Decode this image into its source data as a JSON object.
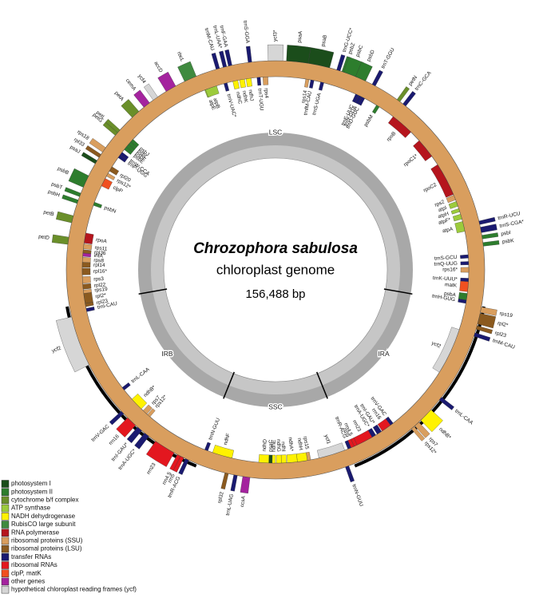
{
  "title": "Chrozophora sabulosa",
  "subtitle": "chloroplast genome",
  "size": "156,488 bp",
  "regions": [
    "LSC",
    "IRB",
    "SSC",
    "IRA"
  ],
  "legend": [
    {
      "label": "photosystem I",
      "color": "#1b4d1b"
    },
    {
      "label": "photosystem II",
      "color": "#2d7d2d"
    },
    {
      "label": "cytochrome b/f complex",
      "color": "#6a8f2a"
    },
    {
      "label": "ATP synthase",
      "color": "#9ccb3c"
    },
    {
      "label": "NADH dehydrogenase",
      "color": "#fff200"
    },
    {
      "label": "RubisCO large subunit",
      "color": "#3f8a3f"
    },
    {
      "label": "RNA polymerase",
      "color": "#b5151d"
    },
    {
      "label": "ribosomal proteins (SSU)",
      "color": "#d99e5e"
    },
    {
      "label": "ribosomal proteins (LSU)",
      "color": "#8b5a1f"
    },
    {
      "label": "transfer RNAs",
      "color": "#1a1a70"
    },
    {
      "label": "ribosomal RNAs",
      "color": "#e3171f"
    },
    {
      "label": "clpP, matK",
      "color": "#f05020"
    },
    {
      "label": "other genes",
      "color": "#a4239e"
    },
    {
      "label": "hypothetical chloroplast reading frames (ycf)",
      "color": "#d6d6d6"
    }
  ],
  "genes": [
    {
      "label": "trnL-UAA*",
      "color": "#1a1a70",
      "strand": "outer"
    },
    {
      "label": "trnF-GAA",
      "color": "#1a1a70",
      "strand": "outer"
    },
    {
      "label": "trnS-GGA",
      "color": "#1a1a70",
      "strand": "outer"
    },
    {
      "label": "ycf3*",
      "color": "#d6d6d6",
      "strand": "outer"
    },
    {
      "label": "psaA",
      "color": "#1b4d1b",
      "strand": "outer"
    },
    {
      "label": "psaB",
      "color": "#1b4d1b",
      "strand": "outer"
    },
    {
      "label": "trnG-UCC*",
      "color": "#1a1a70",
      "strand": "outer"
    },
    {
      "label": "psbZ",
      "color": "#2d7d2d",
      "strand": "outer"
    },
    {
      "label": "psbC",
      "color": "#2d7d2d",
      "strand": "outer"
    },
    {
      "label": "psbD",
      "color": "#2d7d2d",
      "strand": "outer"
    },
    {
      "label": "trnT-GGU",
      "color": "#1a1a70",
      "strand": "outer"
    },
    {
      "label": "petN",
      "color": "#6a8f2a",
      "strand": "outer"
    },
    {
      "label": "trnC-GCA",
      "color": "#1a1a70",
      "strand": "outer"
    },
    {
      "label": "trnR-UCU",
      "color": "#1a1a70",
      "strand": "outer"
    },
    {
      "label": "trnS-CGA*",
      "color": "#1a1a70",
      "strand": "outer"
    },
    {
      "label": "psbI",
      "color": "#2d7d2d",
      "strand": "outer"
    },
    {
      "label": "psbK",
      "color": "#2d7d2d",
      "strand": "outer"
    },
    {
      "label": "rps19",
      "color": "#d99e5e",
      "strand": "outer"
    },
    {
      "label": "rpl2*",
      "color": "#8b5a1f",
      "strand": "outer"
    },
    {
      "label": "rpl23",
      "color": "#8b5a1f",
      "strand": "outer"
    },
    {
      "label": "trnM-CAU",
      "color": "#1a1a70",
      "strand": "outer"
    },
    {
      "label": "trnL-CAA",
      "color": "#1a1a70",
      "strand": "outer"
    },
    {
      "label": "ndhB*",
      "color": "#fff200",
      "strand": "outer"
    },
    {
      "label": "rps7",
      "color": "#d99e5e",
      "strand": "outer"
    },
    {
      "label": "rps12*",
      "color": "#d99e5e",
      "strand": "outer"
    },
    {
      "label": "trnN-GUU",
      "color": "#1a1a70",
      "strand": "outer"
    },
    {
      "label": "ccsA",
      "color": "#a4239e",
      "strand": "outer"
    },
    {
      "label": "trnL-UAG",
      "color": "#1a1a70",
      "strand": "outer"
    },
    {
      "label": "rpl32",
      "color": "#8b5a1f",
      "strand": "outer"
    },
    {
      "label": "trnR-ACG",
      "color": "#1a1a70",
      "strand": "outer"
    },
    {
      "label": "rrn5",
      "color": "#e3171f",
      "strand": "outer"
    },
    {
      "label": "rrn4.5",
      "color": "#e3171f",
      "strand": "outer"
    },
    {
      "label": "rrn23",
      "color": "#e3171f",
      "strand": "outer"
    },
    {
      "label": "trnA-UGC*",
      "color": "#1a1a70",
      "strand": "outer"
    },
    {
      "label": "trnI-GAU*",
      "color": "#1a1a70",
      "strand": "outer"
    },
    {
      "label": "rrn16",
      "color": "#e3171f",
      "strand": "outer"
    },
    {
      "label": "trnV-GAC",
      "color": "#1a1a70",
      "strand": "outer"
    },
    {
      "label": "ycf2",
      "color": "#d6d6d6",
      "strand": "outer"
    },
    {
      "label": "petD",
      "color": "#6a8f2a",
      "strand": "outer"
    },
    {
      "label": "petB",
      "color": "#6a8f2a",
      "strand": "outer"
    },
    {
      "label": "psbH",
      "color": "#2d7d2d",
      "strand": "outer"
    },
    {
      "label": "psbT",
      "color": "#2d7d2d",
      "strand": "outer"
    },
    {
      "label": "psbB",
      "color": "#2d7d2d",
      "strand": "outer"
    },
    {
      "label": "psaJ",
      "color": "#1b4d1b",
      "strand": "outer"
    },
    {
      "label": "rpl33",
      "color": "#8b5a1f",
      "strand": "outer"
    },
    {
      "label": "rps18",
      "color": "#d99e5e",
      "strand": "outer"
    },
    {
      "label": "petG",
      "color": "#6a8f2a",
      "strand": "outer"
    },
    {
      "label": "petL",
      "color": "#6a8f2a",
      "strand": "outer"
    },
    {
      "label": "petA",
      "color": "#6a8f2a",
      "strand": "outer"
    },
    {
      "label": "cemA",
      "color": "#a4239e",
      "strand": "outer"
    },
    {
      "label": "ycf4",
      "color": "#d6d6d6",
      "strand": "outer"
    },
    {
      "label": "accD",
      "color": "#a4239e",
      "strand": "outer"
    },
    {
      "label": "rbcL",
      "color": "#3f8a3f",
      "strand": "outer"
    },
    {
      "label": "trnM-CAU",
      "color": "#1a1a70",
      "strand": "outer"
    },
    {
      "label": "atpE",
      "color": "#9ccb3c",
      "strand": "inner"
    },
    {
      "label": "atpB",
      "color": "#9ccb3c",
      "strand": "inner"
    },
    {
      "label": "trnV-UAC*",
      "color": "#1a1a70",
      "strand": "inner"
    },
    {
      "label": "ndhC",
      "color": "#fff200",
      "strand": "inner"
    },
    {
      "label": "ndhK",
      "color": "#fff200",
      "strand": "inner"
    },
    {
      "label": "ndhJ",
      "color": "#fff200",
      "strand": "inner"
    },
    {
      "label": "trnT-UGU",
      "color": "#1a1a70",
      "strand": "inner"
    },
    {
      "label": "rps4",
      "color": "#d99e5e",
      "strand": "inner"
    },
    {
      "label": "rps14",
      "color": "#d99e5e",
      "strand": "inner"
    },
    {
      "label": "trnfM-CAU",
      "color": "#1a1a70",
      "strand": "inner"
    },
    {
      "label": "trnS-UGA",
      "color": "#1a1a70",
      "strand": "inner"
    },
    {
      "label": "trnE-UUC",
      "color": "#1a1a70",
      "strand": "inner"
    },
    {
      "label": "trnY-GUA",
      "color": "#1a1a70",
      "strand": "inner"
    },
    {
      "label": "trnD-GUC",
      "color": "#1a1a70",
      "strand": "inner"
    },
    {
      "label": "psbM",
      "color": "#2d7d2d",
      "strand": "inner"
    },
    {
      "label": "rpoB",
      "color": "#b5151d",
      "strand": "inner"
    },
    {
      "label": "rpoC1*",
      "color": "#b5151d",
      "strand": "inner"
    },
    {
      "label": "rpoC2",
      "color": "#b5151d",
      "strand": "inner"
    },
    {
      "label": "rps2",
      "color": "#d99e5e",
      "strand": "inner"
    },
    {
      "label": "atpI",
      "color": "#9ccb3c",
      "strand": "inner"
    },
    {
      "label": "atpH",
      "color": "#9ccb3c",
      "strand": "inner"
    },
    {
      "label": "atpF*",
      "color": "#9ccb3c",
      "strand": "inner"
    },
    {
      "label": "atpA",
      "color": "#9ccb3c",
      "strand": "inner"
    },
    {
      "label": "trnS-GCU",
      "color": "#1a1a70",
      "strand": "inner"
    },
    {
      "label": "trnQ-UUG",
      "color": "#1a1a70",
      "strand": "inner"
    },
    {
      "label": "rps16*",
      "color": "#d99e5e",
      "strand": "inner"
    },
    {
      "label": "trnK-UUU*",
      "color": "#1a1a70",
      "strand": "inner"
    },
    {
      "label": "matK",
      "color": "#f05020",
      "strand": "inner"
    },
    {
      "label": "psbA",
      "color": "#2d7d2d",
      "strand": "inner"
    },
    {
      "label": "trnH-GUG",
      "color": "#1a1a70",
      "strand": "inner"
    },
    {
      "label": "ycf2",
      "color": "#d6d6d6",
      "strand": "inner"
    },
    {
      "label": "trnV-GAC",
      "color": "#1a1a70",
      "strand": "inner"
    },
    {
      "label": "rrn16",
      "color": "#e3171f",
      "strand": "inner"
    },
    {
      "label": "trnI-GAU*",
      "color": "#1a1a70",
      "strand": "inner"
    },
    {
      "label": "trnA-UGC*",
      "color": "#1a1a70",
      "strand": "inner"
    },
    {
      "label": "rrn23",
      "color": "#e3171f",
      "strand": "inner"
    },
    {
      "label": "rrn4.5",
      "color": "#e3171f",
      "strand": "inner"
    },
    {
      "label": "rrn5",
      "color": "#e3171f",
      "strand": "inner"
    },
    {
      "label": "trnR-ACG",
      "color": "#1a1a70",
      "strand": "inner"
    },
    {
      "label": "ycf1",
      "color": "#d6d6d6",
      "strand": "inner"
    },
    {
      "label": "rps15",
      "color": "#d99e5e",
      "strand": "inner"
    },
    {
      "label": "ndhH",
      "color": "#fff200",
      "strand": "inner"
    },
    {
      "label": "ndhA*",
      "color": "#fff200",
      "strand": "inner"
    },
    {
      "label": "ndhI",
      "color": "#fff200",
      "strand": "inner"
    },
    {
      "label": "ndhG",
      "color": "#fff200",
      "strand": "inner"
    },
    {
      "label": "ndhE",
      "color": "#fff200",
      "strand": "inner"
    },
    {
      "label": "psaC",
      "color": "#1b4d1b",
      "strand": "inner"
    },
    {
      "label": "ndhD",
      "color": "#fff200",
      "strand": "inner"
    },
    {
      "label": "ndhF",
      "color": "#fff200",
      "strand": "inner"
    },
    {
      "label": "trnN-GUU",
      "color": "#1a1a70",
      "strand": "inner"
    },
    {
      "label": "rps12*",
      "color": "#d99e5e",
      "strand": "inner"
    },
    {
      "label": "rps7",
      "color": "#d99e5e",
      "strand": "inner"
    },
    {
      "label": "ndhB*",
      "color": "#fff200",
      "strand": "inner"
    },
    {
      "label": "trnL-CAA",
      "color": "#1a1a70",
      "strand": "inner"
    },
    {
      "label": "trnI-CAU",
      "color": "#1a1a70",
      "strand": "inner"
    },
    {
      "label": "rpl23",
      "color": "#8b5a1f",
      "strand": "inner"
    },
    {
      "label": "rpl2*",
      "color": "#8b5a1f",
      "strand": "inner"
    },
    {
      "label": "rps19",
      "color": "#d99e5e",
      "strand": "inner"
    },
    {
      "label": "rpl22",
      "color": "#8b5a1f",
      "strand": "inner"
    },
    {
      "label": "rps3",
      "color": "#d99e5e",
      "strand": "inner"
    },
    {
      "label": "rpl16*",
      "color": "#8b5a1f",
      "strand": "inner"
    },
    {
      "label": "rpl14",
      "color": "#8b5a1f",
      "strand": "inner"
    },
    {
      "label": "rps8",
      "color": "#d99e5e",
      "strand": "inner"
    },
    {
      "label": "infA",
      "color": "#a4239e",
      "strand": "inner"
    },
    {
      "label": "rpl36",
      "color": "#8b5a1f",
      "strand": "inner"
    },
    {
      "label": "rps11",
      "color": "#d99e5e",
      "strand": "inner"
    },
    {
      "label": "rpoA",
      "color": "#b5151d",
      "strand": "inner"
    },
    {
      "label": "psbN",
      "color": "#2d7d2d",
      "strand": "inner"
    },
    {
      "label": "clpP",
      "color": "#f05020",
      "strand": "inner"
    },
    {
      "label": "rps12*",
      "color": "#d99e5e",
      "strand": "inner"
    },
    {
      "label": "rpl20",
      "color": "#8b5a1f",
      "strand": "inner"
    },
    {
      "label": "trnP-UGG",
      "color": "#1a1a70",
      "strand": "inner"
    },
    {
      "label": "trnW-CCA",
      "color": "#1a1a70",
      "strand": "inner"
    },
    {
      "label": "psbE",
      "color": "#2d7d2d",
      "strand": "inner"
    },
    {
      "label": "psbF",
      "color": "#2d7d2d",
      "strand": "inner"
    },
    {
      "label": "psbL",
      "color": "#2d7d2d",
      "strand": "inner"
    },
    {
      "label": "psbJ",
      "color": "#2d7d2d",
      "strand": "inner"
    }
  ]
}
